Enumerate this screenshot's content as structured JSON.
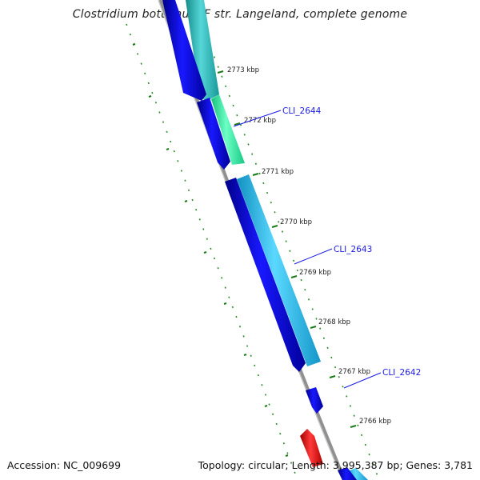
{
  "title": "Clostridium botulinum F str. Langeland, complete genome",
  "accession": "Accession: NC_009699",
  "topology": "Topology: circular; Length: 3,995,387 bp; Genes: 3,781",
  "colors": {
    "forward_gene": "#0a0ad8",
    "reverse_gene": "#22b4e8",
    "highlight_gene": "#2ae69a",
    "teal_gene": "#2ab0b0",
    "rna_gene": "#e41010",
    "backbone": "#8a8a8a",
    "ticks": "#1a7a1a",
    "gene_label": "#1a1ae6"
  },
  "ticks": [
    {
      "label": "2773 kbp"
    },
    {
      "label": "2772 kbp"
    },
    {
      "label": "2771 kbp"
    },
    {
      "label": "2770 kbp"
    },
    {
      "label": "2769 kbp"
    },
    {
      "label": "2768 kbp"
    },
    {
      "label": "2767 kbp"
    },
    {
      "label": "2766 kbp"
    }
  ],
  "gene_labels": [
    {
      "name": "CLI_2644"
    },
    {
      "name": "CLI_2643"
    },
    {
      "name": "CLI_2642"
    }
  ]
}
